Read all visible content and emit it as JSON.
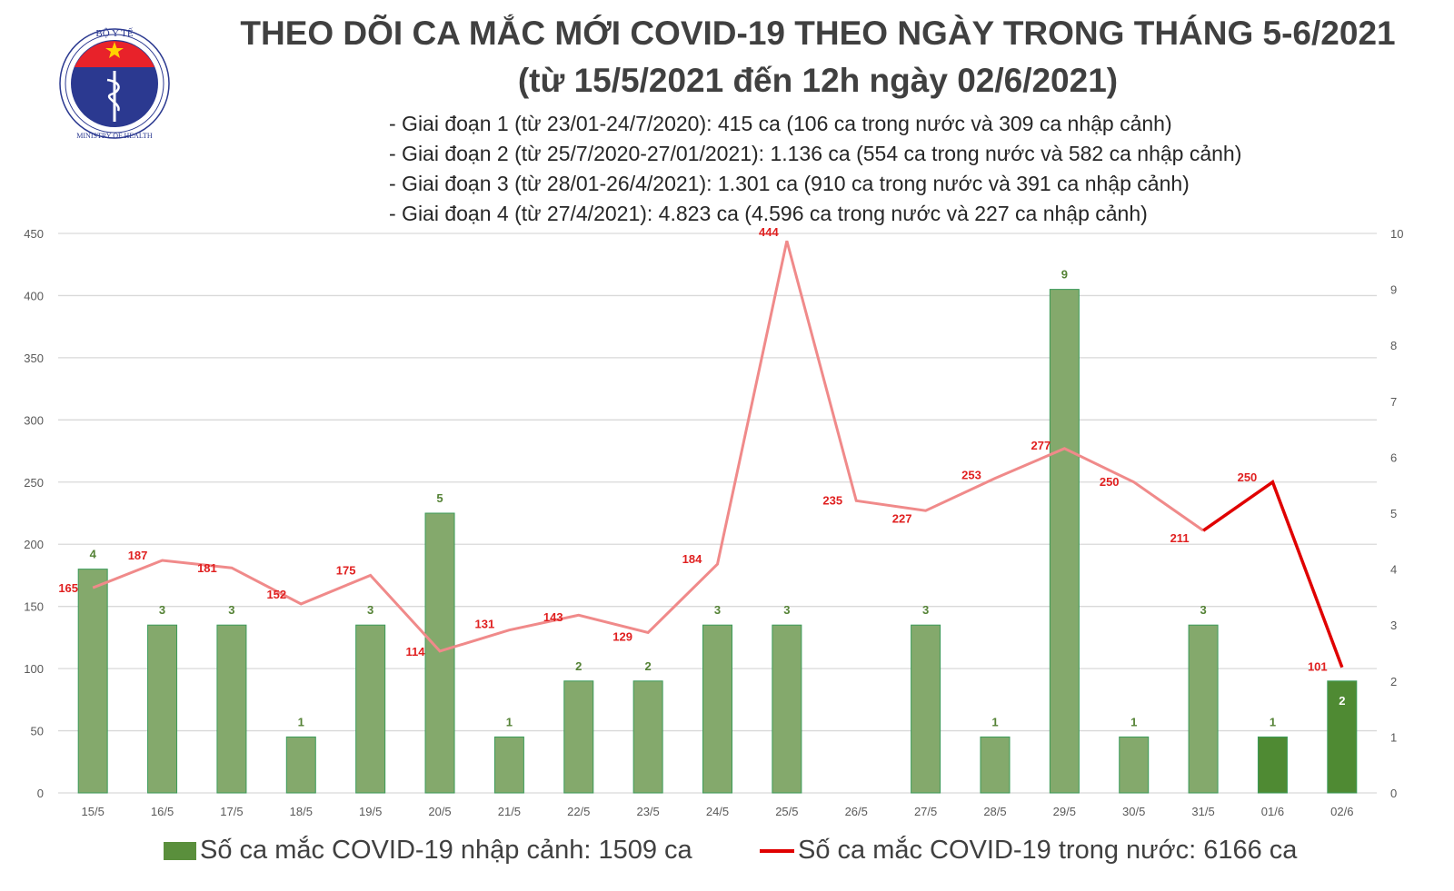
{
  "header": {
    "logo_text_top": "BỘ Y TẾ",
    "logo_text_bottom": "MINISTRY OF HEALTH",
    "title_line1": "THEO DÕI CA MẮC MỚI COVID-19 THEO NGÀY TRONG THÁNG 5-6/2021",
    "title_line2": "(từ 15/5/2021 đến 12h ngày 02/6/2021)",
    "notes": [
      "- Giai đoạn 1 (từ 23/01-24/7/2020): 415 ca (106 ca trong nước và 309 ca nhập cảnh)",
      "- Giai đoạn 2 (từ 25/7/2020-27/01/2021): 1.136 ca (554 ca trong nước và 582 ca nhập cảnh)",
      "- Giai đoạn 3 (từ 28/01-26/4/2021): 1.301 ca (910 ca trong nước và 391 ca nhập cảnh)",
      "- Giai đoạn 4 (từ 27/4/2021): 4.823 ca (4.596 ca trong nước và 227 ca nhập cảnh)"
    ]
  },
  "chart_data": {
    "type": "bar+line",
    "categories": [
      "15/5",
      "16/5",
      "17/5",
      "18/5",
      "19/5",
      "20/5",
      "21/5",
      "22/5",
      "23/5",
      "24/5",
      "25/5",
      "26/5",
      "27/5",
      "28/5",
      "29/5",
      "30/5",
      "31/5",
      "01/6",
      "02/6"
    ],
    "series": [
      {
        "name": "Số ca mắc COVID-19 nhập cảnh: 1509 ca",
        "type": "bar",
        "axis": "right",
        "values": [
          4,
          3,
          3,
          1,
          3,
          5,
          1,
          2,
          2,
          3,
          3,
          null,
          3,
          1,
          9,
          1,
          3,
          1,
          2
        ],
        "color": "#84a96c",
        "highlight_color": "#4f8a33"
      },
      {
        "name": "Số ca mắc COVID-19 trong nước: 6166 ca",
        "type": "line",
        "axis": "left",
        "values": [
          165,
          187,
          181,
          152,
          175,
          114,
          131,
          143,
          129,
          184,
          444,
          235,
          227,
          253,
          277,
          250,
          211,
          250,
          101
        ],
        "color": "#f08a8a",
        "highlight_color": "#e00000"
      }
    ],
    "left_axis": {
      "range": [
        0,
        450
      ],
      "ticks": [
        0,
        50,
        100,
        150,
        200,
        250,
        300,
        350,
        400,
        450
      ]
    },
    "right_axis": {
      "range": [
        0,
        10
      ],
      "ticks": [
        0,
        1,
        2,
        3,
        4,
        5,
        6,
        7,
        8,
        9,
        10
      ]
    },
    "grid": true,
    "legend": "bottom"
  }
}
